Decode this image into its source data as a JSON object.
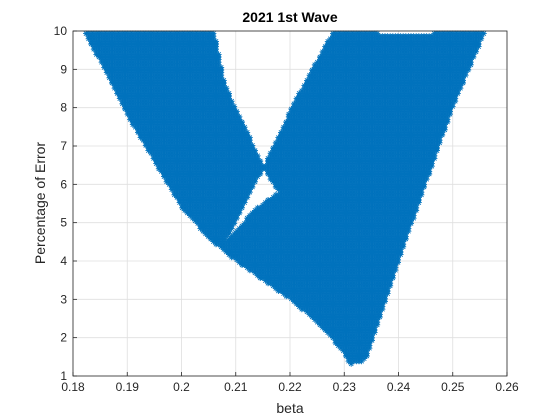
{
  "chart_data": {
    "type": "scatter",
    "title": "2021 1st Wave",
    "xlabel": "beta",
    "ylabel": "Percentage of Error",
    "xlim": [
      0.18,
      0.26
    ],
    "ylim": [
      1,
      10
    ],
    "xticks": [
      "0.18",
      "0.19",
      "0.2",
      "0.21",
      "0.22",
      "0.23",
      "0.24",
      "0.25",
      "0.26"
    ],
    "yticks": [
      "1",
      "2",
      "3",
      "4",
      "5",
      "6",
      "7",
      "8",
      "9",
      "10"
    ],
    "grid": true,
    "marker": "*",
    "series_color": "#0072BD",
    "region": {
      "left_arm_outer": [
        [
          0.182,
          10
        ],
        [
          0.185,
          9.2
        ],
        [
          0.19,
          7.8
        ],
        [
          0.195,
          6.6
        ],
        [
          0.2,
          5.4
        ],
        [
          0.205,
          4.6
        ],
        [
          0.21,
          4.0
        ],
        [
          0.215,
          3.5
        ],
        [
          0.22,
          3.0
        ],
        [
          0.225,
          2.4
        ],
        [
          0.23,
          1.6
        ],
        [
          0.231,
          1.3
        ]
      ],
      "left_arm_inner": [
        [
          0.206,
          10
        ],
        [
          0.208,
          8.6
        ],
        [
          0.212,
          7.4
        ],
        [
          0.216,
          6.2
        ],
        [
          0.218,
          5.8
        ]
      ],
      "v_notch": [
        [
          0.218,
          5.8
        ],
        [
          0.214,
          5.4
        ],
        [
          0.21,
          4.8
        ],
        [
          0.208,
          4.5
        ]
      ],
      "right_arm_inner": [
        [
          0.208,
          4.5
        ],
        [
          0.215,
          6.4
        ],
        [
          0.221,
          8.2
        ],
        [
          0.228,
          10
        ]
      ],
      "right_arm_outer": [
        [
          0.234,
          1.4
        ],
        [
          0.24,
          4.0
        ],
        [
          0.245,
          6.0
        ],
        [
          0.25,
          8.0
        ],
        [
          0.256,
          10
        ]
      ],
      "top_right_row": [
        [
          0.228,
          10
        ],
        [
          0.24,
          9.9
        ],
        [
          0.25,
          9.95
        ],
        [
          0.256,
          10
        ]
      ]
    }
  }
}
